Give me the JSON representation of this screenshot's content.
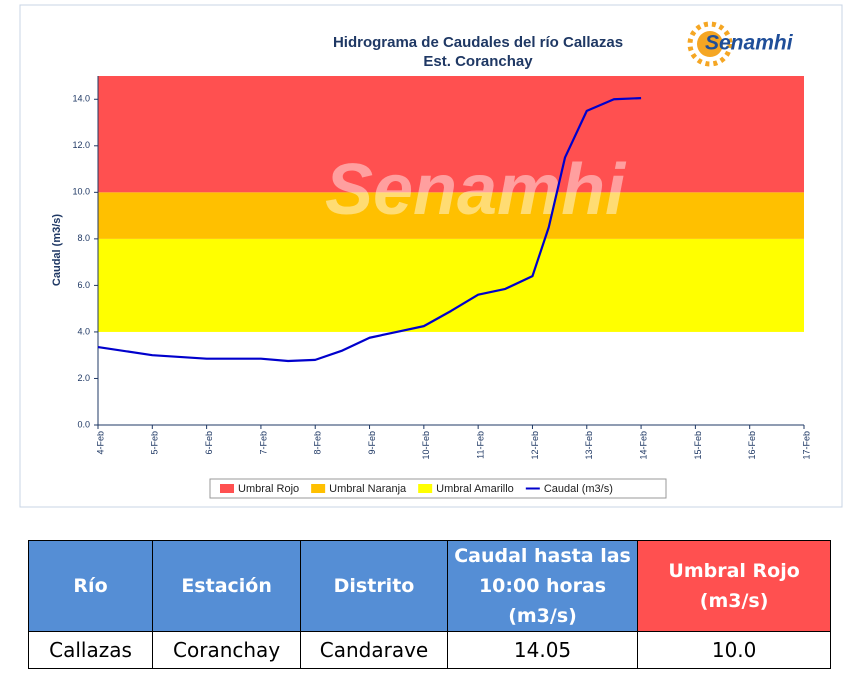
{
  "chart_data": {
    "type": "line",
    "title": "Hidrograma de Caudales del río Callazas",
    "subtitle": "Est. Coranchay",
    "logo": "Senamhi",
    "y_label": "Caudal (m3/s)",
    "xlim": [
      4,
      17
    ],
    "xticks": [
      {
        "value": 4,
        "label": "4-Feb"
      },
      {
        "value": 5,
        "label": "5-Feb"
      },
      {
        "value": 6,
        "label": "6-Feb"
      },
      {
        "value": 7,
        "label": "7-Feb"
      },
      {
        "value": 8,
        "label": "8-Feb"
      },
      {
        "value": 9,
        "label": "9-Feb"
      },
      {
        "value": 10,
        "label": "10-Feb"
      },
      {
        "value": 11,
        "label": "11-Feb"
      },
      {
        "value": 12,
        "label": "12-Feb"
      },
      {
        "value": 13,
        "label": "13-Feb"
      },
      {
        "value": 14,
        "label": "14-Feb"
      },
      {
        "value": 15,
        "label": "15-Feb"
      },
      {
        "value": 16,
        "label": "16-Feb"
      },
      {
        "value": 17,
        "label": "17-Feb"
      }
    ],
    "ylim": [
      0,
      15
    ],
    "yticks": [
      {
        "value": 0,
        "label": "0.0"
      },
      {
        "value": 2,
        "label": "2.0"
      },
      {
        "value": 4,
        "label": "4.0"
      },
      {
        "value": 6,
        "label": "6.0"
      },
      {
        "value": 8,
        "label": "8.0"
      },
      {
        "value": 10,
        "label": "10.0"
      },
      {
        "value": 12,
        "label": "12.0"
      },
      {
        "value": 14,
        "label": "14.0"
      }
    ],
    "bands": [
      {
        "name": "Umbral Rojo",
        "color": "#ff5050",
        "range": [
          10,
          15
        ]
      },
      {
        "name": "Umbral Naranja",
        "color": "#ffc000",
        "range": [
          8,
          10
        ]
      },
      {
        "name": "Umbral Amarillo",
        "color": "#ffff00",
        "range": [
          4,
          8
        ]
      }
    ],
    "series": [
      {
        "name": "Caudal (m3/s)",
        "color": "#0000cc",
        "x": [
          4,
          5,
          6,
          7,
          7.5,
          8,
          8.5,
          9,
          9.5,
          10,
          10.5,
          11,
          11.5,
          12,
          12.3,
          12.6,
          13,
          13.5,
          14
        ],
        "values": [
          3.35,
          3.0,
          2.85,
          2.85,
          2.75,
          2.8,
          3.2,
          3.75,
          4.0,
          4.25,
          4.9,
          5.6,
          5.85,
          6.4,
          8.5,
          11.5,
          13.5,
          14.0,
          14.05
        ]
      }
    ]
  },
  "table": {
    "header": [
      "Río",
      "Estación",
      "Distrito",
      "Caudal hasta las 10:00 horas (m3/s)",
      "Umbral Rojo (m3/s)"
    ],
    "rows": [
      [
        "Callazas",
        "Coranchay",
        "Candarave",
        "14.05",
        "10.0"
      ]
    ]
  }
}
